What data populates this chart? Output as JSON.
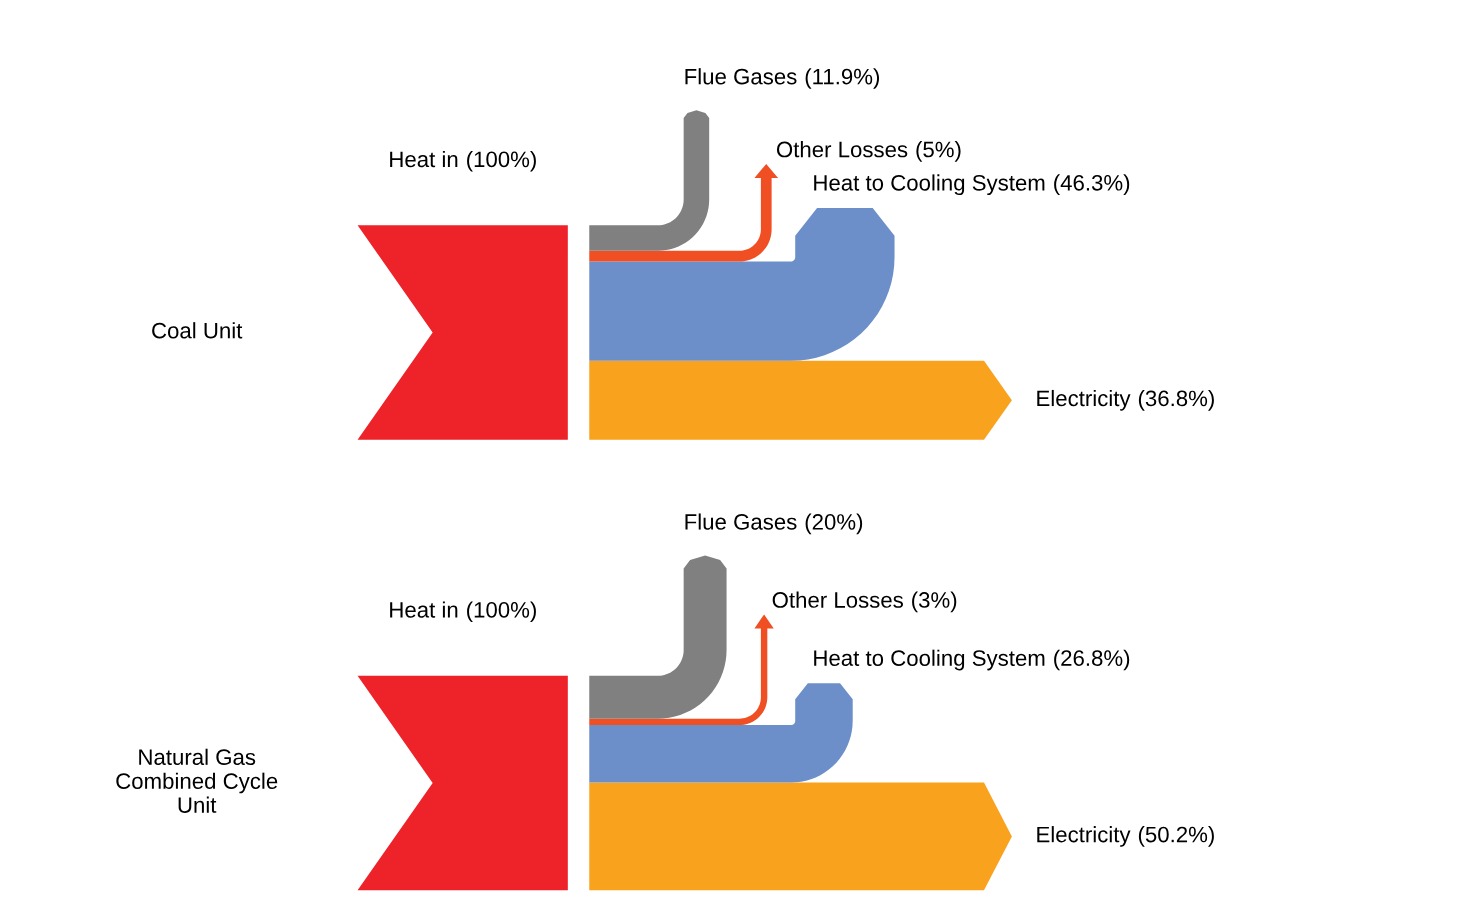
{
  "chart_data": [
    {
      "type": "other",
      "title": "Coal Unit",
      "categories": [
        "Heat in",
        "Flue Gases",
        "Other Losses",
        "Heat to Cooling System",
        "Electricity"
      ],
      "values": [
        100,
        11.9,
        5,
        46.3,
        36.8
      ],
      "value_labels": [
        "(100%)",
        "(11.9%)",
        "(5%)",
        "(46.3%)",
        "(36.8%)"
      ],
      "colors": [
        "#ee2229",
        "#808080",
        "#f04e23",
        "#6d8fc9",
        "#f9a21e"
      ]
    },
    {
      "type": "other",
      "title": "Natural Gas\nCombined Cycle\nUnit",
      "categories": [
        "Heat in",
        "Flue Gases",
        "Other Losses",
        "Heat to Cooling System",
        "Electricity"
      ],
      "values": [
        100,
        20,
        3,
        26.8,
        50.2
      ],
      "value_labels": [
        "(100%)",
        "(20%)",
        "(3%)",
        "(26.8%)",
        "(50.2%)"
      ],
      "colors": [
        "#ee2229",
        "#808080",
        "#f04e23",
        "#6d8fc9",
        "#f9a21e"
      ]
    }
  ]
}
